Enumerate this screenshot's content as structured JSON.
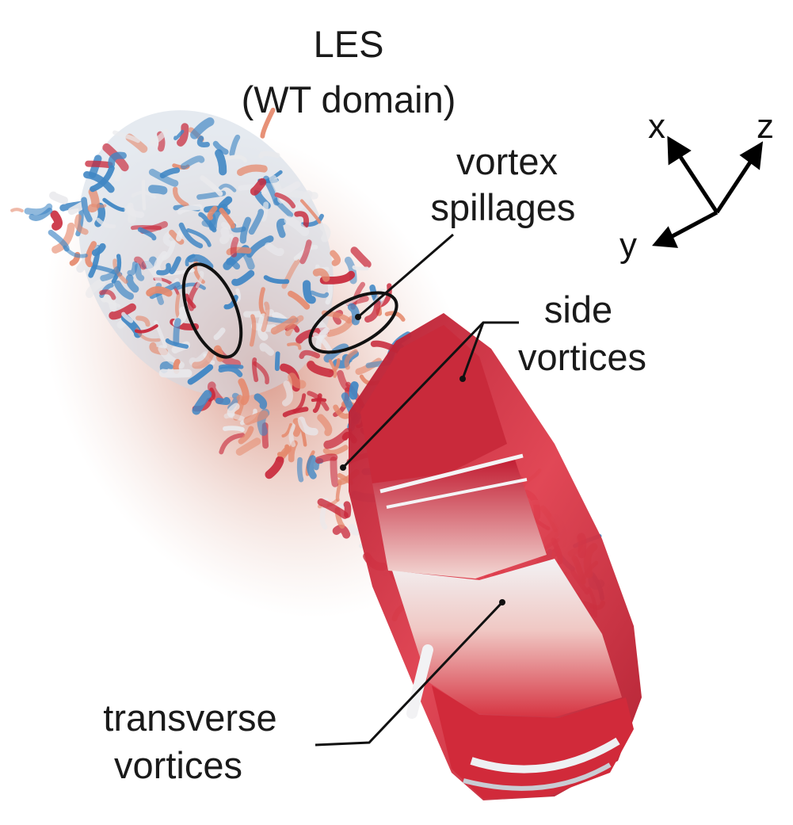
{
  "title": {
    "line1": "LES",
    "line2": "(WT domain)"
  },
  "annotations": {
    "vortex_spillages": {
      "line1": "vortex",
      "line2": "spillages"
    },
    "side_vortices": {
      "line1": "side",
      "line2": "vortices"
    },
    "transverse_vortices": {
      "line1": "transverse",
      "line2": "vortices"
    }
  },
  "axes": {
    "x": "x",
    "y": "y",
    "z": "z"
  },
  "colors": {
    "vortex_red": "#c8283a",
    "vortex_salmon": "#e58a6e",
    "vortex_white": "#e9e9ec",
    "vortex_blue": "#3f86c4",
    "car_red": "#d42a3c"
  }
}
